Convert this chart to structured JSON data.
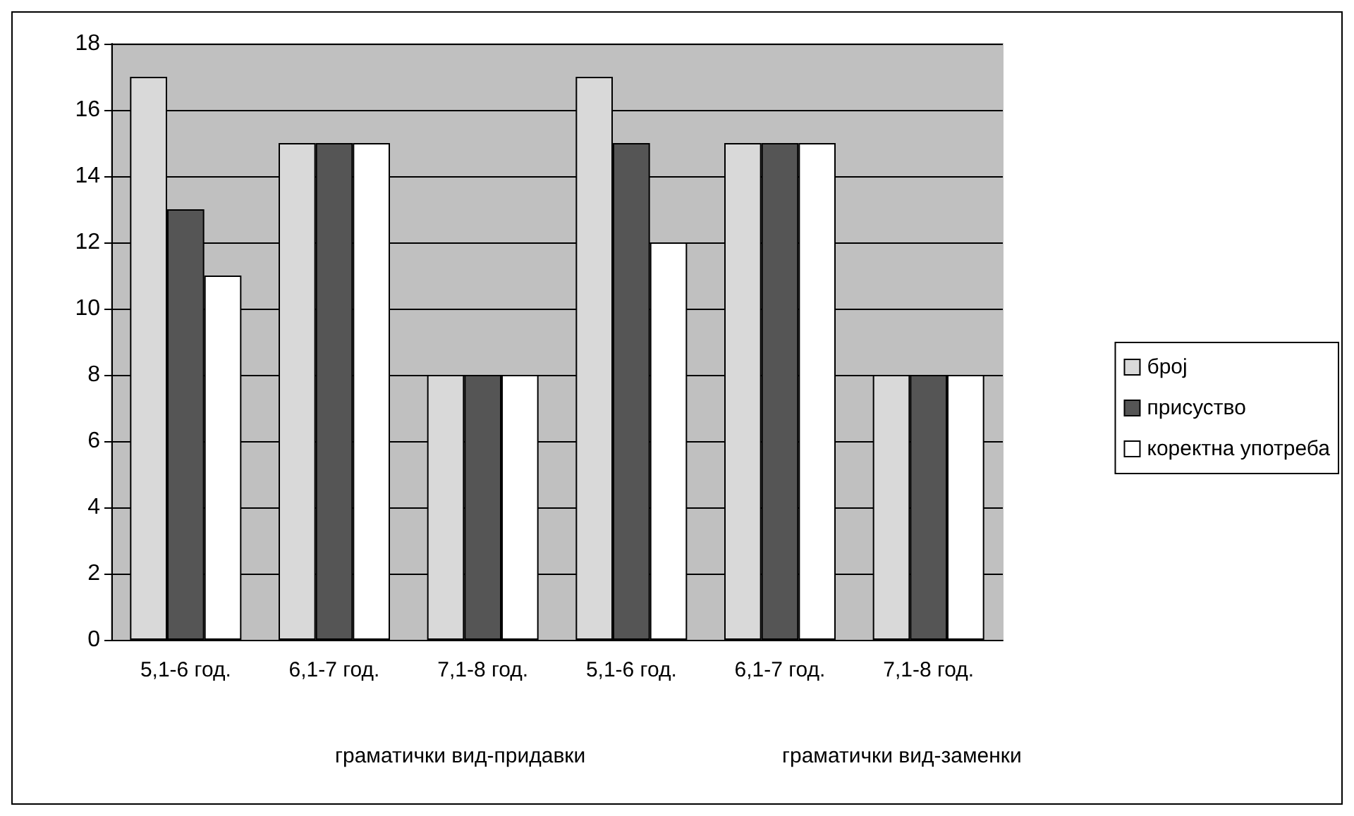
{
  "chart_data": {
    "type": "bar",
    "categories": [
      "5,1-6 год.",
      "6,1-7 год.",
      "7,1-8 год.",
      "5,1-6 год.",
      "6,1-7 год.",
      "7,1-8 год."
    ],
    "series": [
      {
        "name": "број",
        "color": "#d9d9d9",
        "values": [
          17,
          15,
          8,
          17,
          15,
          8
        ]
      },
      {
        "name": "присуство",
        "color": "#555555",
        "values": [
          13,
          15,
          8,
          15,
          15,
          8
        ]
      },
      {
        "name": "коректна употреба",
        "color": "#ffffff",
        "values": [
          11,
          15,
          8,
          12,
          15,
          8
        ]
      }
    ],
    "ylim": [
      0,
      18
    ],
    "yticks": [
      0,
      2,
      4,
      6,
      8,
      10,
      12,
      14,
      16,
      18
    ],
    "grid": "y",
    "legend": "right",
    "annotations": [
      "граматички вид-придавки",
      "граматички вид-заменки"
    ]
  }
}
